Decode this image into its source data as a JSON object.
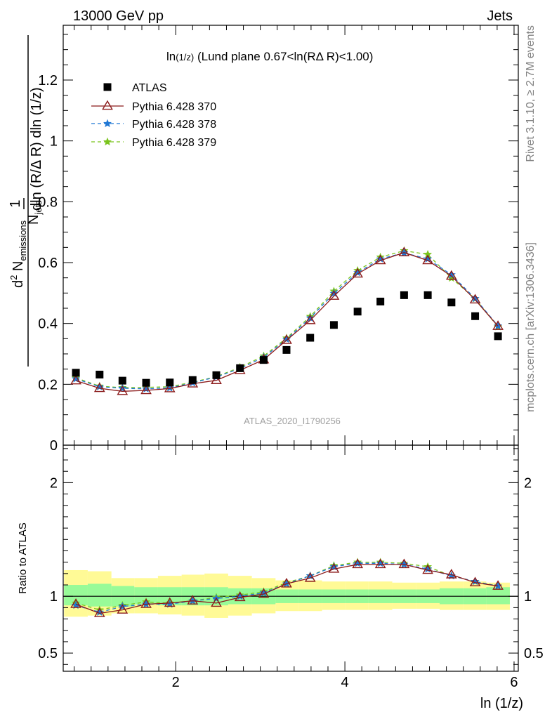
{
  "header": {
    "left": "13000 GeV pp",
    "right": "Jets"
  },
  "side_text": {
    "rivet": "Rivet 3.1.10, ≥ 2.7M events",
    "mcplots": "mcplots.cern.ch [arXiv:1306.3436]"
  },
  "watermark": "ATLAS_2020_I1790256",
  "colors": {
    "atlas": "#000000",
    "p370": "#8b1a1a",
    "p378": "#1f77d4",
    "p379": "#7ac41c",
    "band_inner": "#98fb98",
    "band_outer": "#fffa96"
  },
  "chart_data": [
    {
      "type": "scatter",
      "title": "ln(1/z) (Lund plane 0.67<ln(RΔ R)<1.00)",
      "title_parts": {
        "main": "ln",
        "sub": "(1/z)",
        "rest": " (Lund plane 0.67<ln(RΔ R)<1.00)"
      },
      "ylabel": "1/N_jets dln (R/Δ R) d² N_emissions / dln (1/z)",
      "ylabel_parts": {
        "one": "1",
        "njets": "N",
        "jets_sub": "jets",
        "dln": "dln (R/Δ R) dln (1/z)",
        "d2": "d",
        "sup": "2",
        "n": " N",
        "emissions_sub": "emissions"
      },
      "xlim": [
        0.67,
        6.05
      ],
      "ylim": [
        0,
        1.38
      ],
      "yticks": [
        "0",
        "0.2",
        "0.4",
        "0.6",
        "0.8",
        "1",
        "1.2"
      ],
      "legend_position": "top-left",
      "x": [
        0.82,
        1.1,
        1.37,
        1.65,
        1.93,
        2.2,
        2.48,
        2.76,
        3.04,
        3.31,
        3.59,
        3.87,
        4.15,
        4.42,
        4.7,
        4.98,
        5.26,
        5.54,
        5.81
      ],
      "series": [
        {
          "name": "ATLAS",
          "values": [
            0.238,
            0.232,
            0.212,
            0.205,
            0.206,
            0.214,
            0.23,
            0.253,
            0.28,
            0.313,
            0.353,
            0.395,
            0.439,
            0.472,
            0.493,
            0.493,
            0.469,
            0.424,
            0.358
          ]
        },
        {
          "name": "Pythia 6.428 370",
          "values": [
            0.212,
            0.187,
            0.177,
            0.18,
            0.186,
            0.202,
            0.213,
            0.246,
            0.281,
            0.345,
            0.41,
            0.49,
            0.563,
            0.607,
            0.633,
            0.607,
            0.556,
            0.478,
            0.391
          ]
        },
        {
          "name": "Pythia 6.428 378",
          "values": [
            0.218,
            0.192,
            0.187,
            0.185,
            0.188,
            0.205,
            0.224,
            0.252,
            0.289,
            0.348,
            0.418,
            0.499,
            0.567,
            0.612,
            0.632,
            0.612,
            0.56,
            0.482,
            0.392
          ]
        },
        {
          "name": "Pythia 6.428 379",
          "values": [
            0.221,
            0.194,
            0.189,
            0.19,
            0.192,
            0.207,
            0.225,
            0.256,
            0.293,
            0.352,
            0.423,
            0.506,
            0.574,
            0.618,
            0.639,
            0.627,
            0.549,
            0.481,
            0.389
          ]
        }
      ]
    },
    {
      "type": "line",
      "ylabel": "Ratio to ATLAS",
      "xlabel": "ln (1/z)",
      "xlim": [
        0.67,
        6.05
      ],
      "ylim": [
        0.34,
        2.33
      ],
      "yticks": [
        "0.5",
        "1",
        "2"
      ],
      "xticks": [
        "2",
        "4",
        "6"
      ],
      "band_edges": [
        0.68,
        0.96,
        1.24,
        1.51,
        1.79,
        2.07,
        2.34,
        2.62,
        2.9,
        3.18,
        3.45,
        3.73,
        4.01,
        4.28,
        4.56,
        4.84,
        5.12,
        5.4,
        5.67,
        5.95
      ],
      "band_inner": [
        [
          0.92,
          1.1
        ],
        [
          0.91,
          1.11
        ],
        [
          0.91,
          1.09
        ],
        [
          0.93,
          1.08
        ],
        [
          0.92,
          1.08
        ],
        [
          0.92,
          1.08
        ],
        [
          0.92,
          1.08
        ],
        [
          0.93,
          1.07
        ],
        [
          0.93,
          1.07
        ],
        [
          0.94,
          1.06
        ],
        [
          0.94,
          1.06
        ],
        [
          0.94,
          1.06
        ],
        [
          0.94,
          1.06
        ],
        [
          0.94,
          1.06
        ],
        [
          0.94,
          1.06
        ],
        [
          0.94,
          1.06
        ],
        [
          0.93,
          1.07
        ],
        [
          0.93,
          1.07
        ],
        [
          0.93,
          1.08
        ]
      ],
      "band_outer": [
        [
          0.82,
          1.23
        ],
        [
          0.83,
          1.22
        ],
        [
          0.85,
          1.16
        ],
        [
          0.85,
          1.16
        ],
        [
          0.84,
          1.18
        ],
        [
          0.83,
          1.19
        ],
        [
          0.81,
          1.2
        ],
        [
          0.83,
          1.18
        ],
        [
          0.85,
          1.16
        ],
        [
          0.87,
          1.14
        ],
        [
          0.87,
          1.14
        ],
        [
          0.88,
          1.13
        ],
        [
          0.88,
          1.13
        ],
        [
          0.88,
          1.13
        ],
        [
          0.89,
          1.12
        ],
        [
          0.89,
          1.12
        ],
        [
          0.88,
          1.13
        ],
        [
          0.88,
          1.13
        ],
        [
          0.88,
          1.12
        ]
      ],
      "series": [
        {
          "name": "Pythia 6.428 370",
          "values": [
            0.93,
            0.85,
            0.88,
            0.93,
            0.94,
            0.96,
            0.94,
            0.99,
            1.02,
            1.11,
            1.16,
            1.24,
            1.28,
            1.28,
            1.28,
            1.23,
            1.19,
            1.12,
            1.09
          ]
        },
        {
          "name": "Pythia 6.428 378",
          "values": [
            0.92,
            0.86,
            0.91,
            0.93,
            0.93,
            0.96,
            0.98,
            1.0,
            1.03,
            1.11,
            1.18,
            1.26,
            1.29,
            1.29,
            1.28,
            1.24,
            1.18,
            1.13,
            1.09
          ]
        },
        {
          "name": "Pythia 6.428 379",
          "values": [
            0.94,
            0.88,
            0.92,
            0.95,
            0.94,
            0.96,
            0.99,
            1.01,
            1.04,
            1.12,
            1.18,
            1.27,
            1.3,
            1.3,
            1.29,
            1.26,
            1.18,
            1.13,
            1.09
          ]
        }
      ]
    }
  ]
}
